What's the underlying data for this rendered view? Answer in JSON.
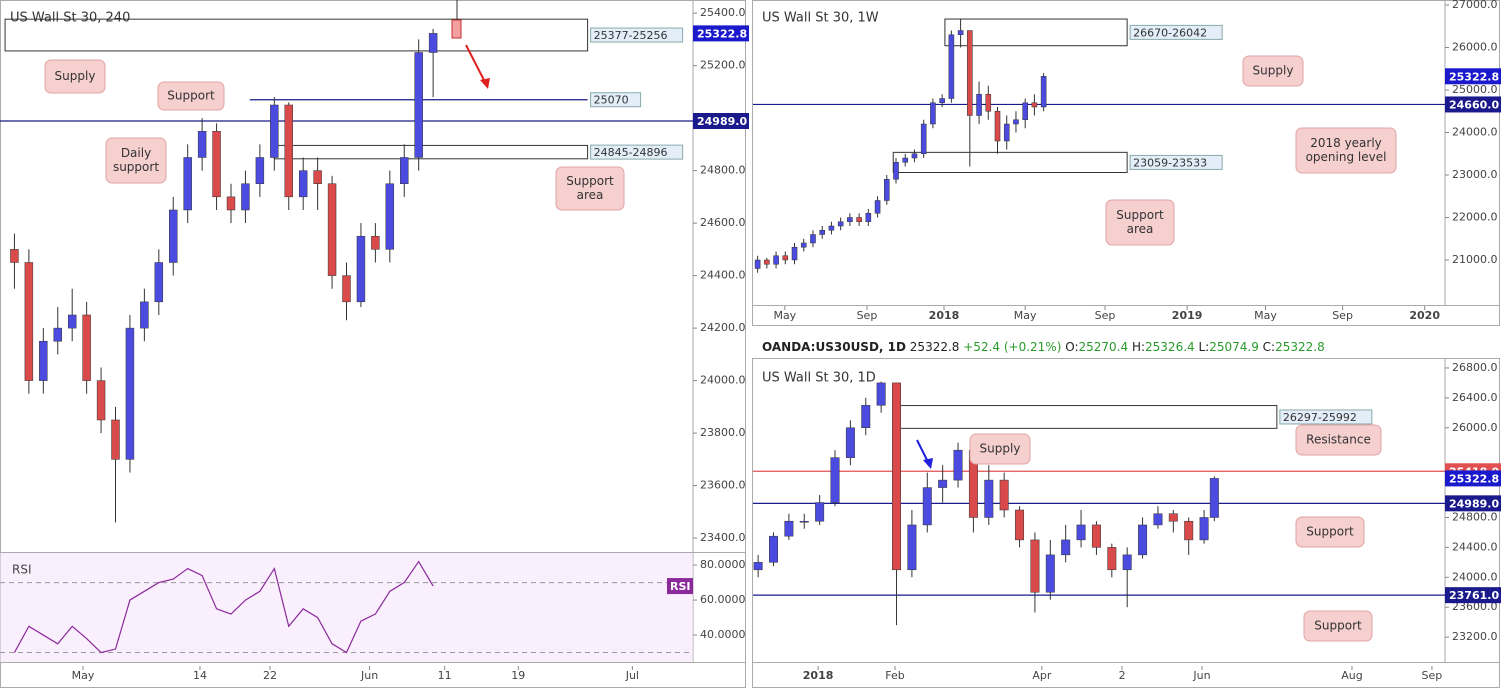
{
  "chart_data": [
    {
      "type": "candlestick",
      "title": "US Wall St 30, 240",
      "x": [
        1,
        2,
        3,
        4,
        5,
        6,
        7,
        8,
        9,
        10,
        11,
        12,
        13,
        14,
        15,
        16,
        17,
        18,
        19,
        20,
        21,
        22,
        23,
        24,
        25,
        26,
        27,
        28,
        29,
        30
      ],
      "open": [
        24500,
        24450,
        24000,
        24150,
        24200,
        24250,
        24000,
        23850,
        23700,
        24200,
        24300,
        24450,
        24650,
        24850,
        24950,
        24700,
        24650,
        24750,
        24850,
        25050,
        24700,
        24800,
        24750,
        24400,
        24300,
        24550,
        24500,
        24750,
        24850,
        25250
      ],
      "high": [
        24560,
        24500,
        24200,
        24280,
        24350,
        24300,
        24050,
        23900,
        24250,
        24350,
        24500,
        24700,
        24900,
        25000,
        24980,
        24750,
        24800,
        24900,
        25080,
        25060,
        24850,
        24850,
        24780,
        24450,
        24600,
        24600,
        24800,
        24900,
        25300,
        25340
      ],
      "low": [
        24350,
        23950,
        23950,
        24100,
        24150,
        23950,
        23800,
        23460,
        23650,
        24150,
        24250,
        24400,
        24600,
        24800,
        24650,
        24600,
        24600,
        24700,
        24800,
        24650,
        24650,
        24650,
        24350,
        24230,
        24280,
        24450,
        24450,
        24700,
        24800,
        25080
      ],
      "close": [
        24450,
        24000,
        24150,
        24200,
        24250,
        24000,
        23850,
        23700,
        24200,
        24300,
        24450,
        24650,
        24850,
        24950,
        24700,
        24650,
        24750,
        24850,
        25050,
        24700,
        24800,
        24750,
        24400,
        24300,
        24550,
        24500,
        24750,
        24850,
        25250,
        25322.8
      ],
      "up_color": "#4b4be0",
      "down_color": "#d94a4a",
      "xlim": [
        0,
        48
      ],
      "xticks": [
        {
          "value": 5.75,
          "label": "May"
        },
        {
          "value": 13.85,
          "label": "14"
        },
        {
          "value": 18.7,
          "label": "22"
        },
        {
          "value": 25.6,
          "label": "Jun"
        },
        {
          "value": 30.8,
          "label": "11"
        },
        {
          "value": 35.9,
          "label": "19"
        },
        {
          "value": 43.8,
          "label": "Jul"
        }
      ],
      "ylim": [
        23347,
        25450
      ],
      "yticks": [
        {
          "value": 25400,
          "label": "25400.0"
        },
        {
          "value": 25200,
          "label": "25200.0"
        },
        {
          "value": 24800,
          "label": "24800.0"
        },
        {
          "value": 24600,
          "label": "24600.0"
        },
        {
          "value": 24400,
          "label": "24400.0"
        },
        {
          "value": 24200,
          "label": "24200.0"
        },
        {
          "value": 24000,
          "label": "24000.0"
        },
        {
          "value": 23800,
          "label": "23800.0"
        },
        {
          "value": 23600,
          "label": "23600.0"
        },
        {
          "value": 23400,
          "label": "23400.0"
        }
      ],
      "zones": [
        {
          "label": "25377-25256",
          "top": 25377,
          "bottom": 25256,
          "x0": 0.35,
          "x1": 40.7
        },
        {
          "label": "24845-24896",
          "top": 24896,
          "bottom": 24845,
          "x0": 19.0,
          "x1": 40.7
        }
      ],
      "levels": [
        {
          "value": 25070,
          "label": "25070",
          "color": "#1a1a8c",
          "x0": 17.3,
          "x1": 40.7
        },
        {
          "value": 24989,
          "label": "24989.0",
          "color": "#1a1a8c",
          "tag": true
        }
      ],
      "last": {
        "value": 25322.8,
        "label": "25322.8",
        "color": "#1a1acc"
      },
      "annotations": [
        [
          "Supply"
        ],
        [
          "Support"
        ],
        [
          "Daily",
          "support"
        ],
        [
          "Support",
          "area"
        ]
      ],
      "rsi": {
        "label": "RSI",
        "color": "#8b2a9b",
        "values": [
          30,
          45,
          40,
          35,
          45,
          38,
          30,
          32,
          60,
          65,
          70,
          72,
          78,
          74,
          55,
          52,
          60,
          65,
          78,
          45,
          55,
          50,
          35,
          30,
          48,
          52,
          65,
          70,
          82,
          68
        ],
        "ylim": [
          24.6,
          86.9
        ],
        "levels": [
          70,
          30
        ],
        "yticks": [
          {
            "value": 80,
            "label": "80.0000"
          },
          {
            "value": 60,
            "label": "60.0000"
          },
          {
            "value": 40,
            "label": "40.0000"
          }
        ]
      }
    },
    {
      "type": "candlestick",
      "title": "US Wall St 30, 1W",
      "x": [
        1,
        3,
        5,
        7,
        9,
        11,
        13,
        15,
        17,
        19,
        21,
        23,
        25,
        27,
        29,
        31,
        33,
        35,
        37,
        39,
        41,
        43,
        45,
        47,
        49,
        51,
        53,
        55,
        57,
        59,
        61,
        63
      ],
      "open": [
        20800,
        21000,
        20900,
        21100,
        21000,
        21300,
        21400,
        21600,
        21700,
        21800,
        21900,
        22000,
        21900,
        22100,
        22400,
        22900,
        23300,
        23400,
        23500,
        24200,
        24700,
        24800,
        26300,
        26400,
        24400,
        24900,
        24500,
        23800,
        24200,
        24300,
        24700,
        24600
      ],
      "high": [
        21100,
        21050,
        21200,
        21200,
        21400,
        21500,
        21700,
        21800,
        21900,
        22000,
        22100,
        22100,
        22200,
        22500,
        23000,
        23400,
        23500,
        23600,
        24300,
        24800,
        24900,
        26400,
        26670,
        26400,
        25200,
        25100,
        24600,
        24400,
        24500,
        24800,
        24900,
        25400
      ],
      "low": [
        20700,
        20800,
        20800,
        20900,
        20900,
        21200,
        21300,
        21500,
        21600,
        21700,
        21800,
        21800,
        21800,
        22000,
        22300,
        22800,
        23200,
        23300,
        23400,
        24100,
        24600,
        24700,
        26000,
        23200,
        24200,
        24300,
        23500,
        23600,
        24000,
        24100,
        24400,
        24500
      ],
      "close": [
        21000,
        20900,
        21100,
        21000,
        21300,
        21400,
        21600,
        21700,
        21800,
        21900,
        22000,
        21900,
        22100,
        22400,
        22900,
        23300,
        23400,
        23500,
        24200,
        24700,
        24800,
        26300,
        26400,
        24400,
        24900,
        24500,
        23800,
        24200,
        24300,
        24700,
        24600,
        25322.8
      ],
      "up_color": "#4b4be0",
      "down_color": "#d94a4a",
      "xlim": [
        0,
        150
      ],
      "xticks": [
        {
          "value": 6.9,
          "label": "May"
        },
        {
          "value": 24.7,
          "label": "Sep"
        },
        {
          "value": 41.4,
          "label": "2018"
        },
        {
          "value": 59.0,
          "label": "May"
        },
        {
          "value": 76.3,
          "label": "Sep"
        },
        {
          "value": 94.1,
          "label": "2019"
        },
        {
          "value": 111.1,
          "label": "May"
        },
        {
          "value": 127.8,
          "label": "Sep"
        },
        {
          "value": 145.6,
          "label": "2020"
        }
      ],
      "ylim": [
        19941,
        27118
      ],
      "yticks": [
        {
          "value": 27000,
          "label": "27000.0"
        },
        {
          "value": 26000,
          "label": "26000.0"
        },
        {
          "value": 25000,
          "label": "25000.0"
        },
        {
          "value": 24000,
          "label": "24000.0"
        },
        {
          "value": 23000,
          "label": "23000.0"
        },
        {
          "value": 22000,
          "label": "22000.0"
        },
        {
          "value": 21000,
          "label": "21000.0"
        }
      ],
      "zones": [
        {
          "label": "26670-26042",
          "top": 26670,
          "bottom": 26042,
          "x0": 41.6,
          "x1": 81.1
        },
        {
          "label": "23059-23533",
          "top": 23533,
          "bottom": 23059,
          "x0": 30.4,
          "x1": 81.1
        }
      ],
      "levels": [
        {
          "value": 24660,
          "label": "24660.0",
          "color": "#1a1a8c",
          "tag": true
        }
      ],
      "last": {
        "value": 25322.8,
        "label": "25322.8",
        "color": "#1a1acc"
      },
      "annotations": [
        [
          "Supply"
        ],
        [
          "2018 yearly",
          "opening level"
        ],
        [
          "Support",
          "area"
        ]
      ]
    },
    {
      "type": "candlestick",
      "title": "US Wall St 30, 1D",
      "header": {
        "symbol": "OANDA:US30USD, 1D",
        "last": "25322.8",
        "change": "+52.4 (+0.21%)",
        "fields": [
          {
            "key": "O:",
            "value": "25270.4"
          },
          {
            "key": "H:",
            "value": "25326.4"
          },
          {
            "key": "L:",
            "value": "25074.9"
          },
          {
            "key": "C:",
            "value": "25322.8"
          }
        ]
      },
      "x": [
        2,
        8,
        14,
        20,
        26,
        32,
        38,
        44,
        50,
        56,
        62,
        68,
        74,
        80,
        86,
        92,
        98,
        104,
        110,
        116,
        122,
        128,
        134,
        140,
        146,
        152,
        158,
        164,
        170,
        176,
        180
      ],
      "open": [
        24100,
        24200,
        24550,
        24750,
        24750,
        25000,
        25600,
        26000,
        26300,
        26600,
        24100,
        24700,
        25200,
        25300,
        25700,
        24800,
        25300,
        24900,
        24500,
        23800,
        24300,
        24500,
        24700,
        24400,
        24100,
        24300,
        24700,
        24850,
        24750,
        24500,
        24800
      ],
      "high": [
        24300,
        24600,
        24850,
        24850,
        25100,
        25700,
        26100,
        26400,
        26616,
        26600,
        24900,
        25400,
        25500,
        25800,
        25750,
        25500,
        25400,
        24950,
        24600,
        24500,
        24700,
        24900,
        24750,
        24450,
        24400,
        24800,
        24950,
        24900,
        24800,
        24900,
        25350
      ],
      "low": [
        24000,
        24150,
        24500,
        24650,
        24700,
        24950,
        25500,
        25900,
        26200,
        23360,
        24000,
        24600,
        25000,
        25200,
        24600,
        24700,
        24800,
        24400,
        23530,
        23700,
        24200,
        24400,
        24300,
        24000,
        23600,
        24250,
        24650,
        24600,
        24300,
        24450,
        24750
      ],
      "close": [
        24200,
        24550,
        24750,
        24750,
        25000,
        25600,
        26000,
        26300,
        26600,
        24100,
        24700,
        25200,
        25300,
        25700,
        24800,
        25300,
        24900,
        24500,
        23800,
        24300,
        24500,
        24700,
        24400,
        24100,
        24300,
        24700,
        24850,
        24750,
        24500,
        24800,
        25322.8
      ],
      "up_color": "#4b4be0",
      "down_color": "#d94a4a",
      "xlim": [
        0,
        270
      ],
      "xticks": [
        {
          "value": 25.4,
          "label": "2018"
        },
        {
          "value": 55.4,
          "label": "Feb"
        },
        {
          "value": 112.7,
          "label": "Apr"
        },
        {
          "value": 144,
          "label": "2"
        },
        {
          "value": 175.2,
          "label": "Jun"
        },
        {
          "value": 233.7,
          "label": "Aug"
        },
        {
          "value": 264.9,
          "label": "Sep"
        }
      ],
      "ylim": [
        22867,
        26933
      ],
      "yticks": [
        {
          "value": 26800,
          "label": "26800.0"
        },
        {
          "value": 26400,
          "label": "26400.0"
        },
        {
          "value": 26000,
          "label": "26000.0"
        },
        {
          "value": 24800,
          "label": "24800.0"
        },
        {
          "value": 24400,
          "label": "24400.0"
        },
        {
          "value": 24000,
          "label": "24000.0"
        },
        {
          "value": 23600,
          "label": "23600.0"
        },
        {
          "value": 23200,
          "label": "23200.0"
        }
      ],
      "zones": [
        {
          "label": "26297-25992",
          "top": 26297,
          "bottom": 25992,
          "x0": 54.6,
          "x1": 204.4
        }
      ],
      "levels": [
        {
          "value": 25418,
          "label": "25418.0",
          "color": "#e05050",
          "tag": true
        },
        {
          "value": 24989,
          "label": "24989.0",
          "color": "#1a1a8c",
          "tag": true
        },
        {
          "value": 23761,
          "label": "23761.0",
          "color": "#1a1a8c",
          "tag": true
        }
      ],
      "last": {
        "value": 25322.8,
        "label": "25322.8",
        "color": "#1a1acc"
      },
      "annotations": [
        [
          "Supply"
        ],
        [
          "Resistance"
        ],
        [
          "Support"
        ],
        [
          "Support"
        ]
      ]
    }
  ]
}
